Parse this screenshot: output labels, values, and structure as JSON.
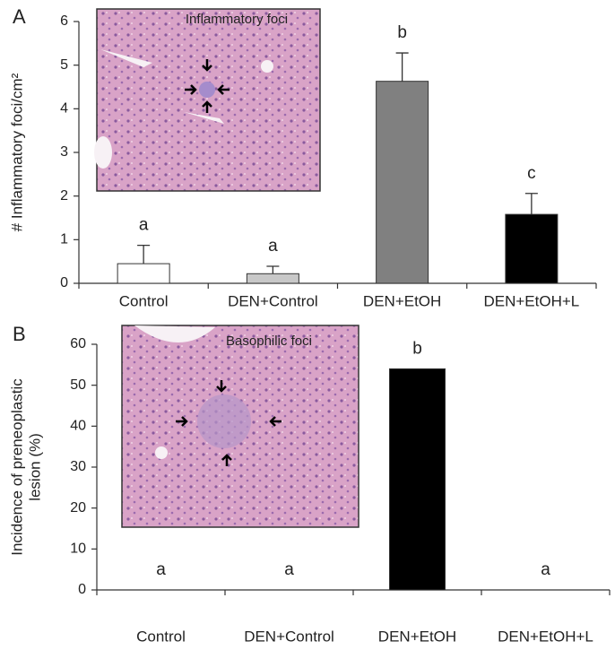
{
  "chart_data": [
    {
      "type": "bar",
      "panel_label": "A",
      "inset_label": "Inflammatory foci",
      "ylabel": [
        "# Inflammatory foci/cm²"
      ],
      "categories": [
        "Control",
        "DEN+Control",
        "DEN+EtOH",
        "DEN+EtOH+L"
      ],
      "values": [
        0.45,
        0.22,
        4.63,
        1.58
      ],
      "errors": [
        0.42,
        0.17,
        0.65,
        0.48
      ],
      "colors": [
        "#ffffff",
        "#c8c8c8",
        "#808080",
        "#000000"
      ],
      "letters": [
        "a",
        "a",
        "b",
        "c"
      ],
      "ylim": [
        0,
        6
      ],
      "yticks": [
        0,
        1,
        2,
        3,
        4,
        5,
        6
      ]
    },
    {
      "type": "bar",
      "panel_label": "B",
      "inset_label": "Basophilic foci",
      "ylabel": [
        "Incidence of preneoplastic",
        "lesion (%)"
      ],
      "categories": [
        "Control",
        "DEN+Control",
        "DEN+EtOH",
        "DEN+EtOH+L"
      ],
      "values": [
        0,
        0,
        54,
        0
      ],
      "colors": [
        "#000000",
        "#000000",
        "#000000",
        "#000000"
      ],
      "letters": [
        "a",
        "a",
        "b",
        "a"
      ],
      "ylim": [
        0,
        60
      ],
      "yticks": [
        0,
        10,
        20,
        30,
        40,
        50,
        60
      ]
    }
  ]
}
